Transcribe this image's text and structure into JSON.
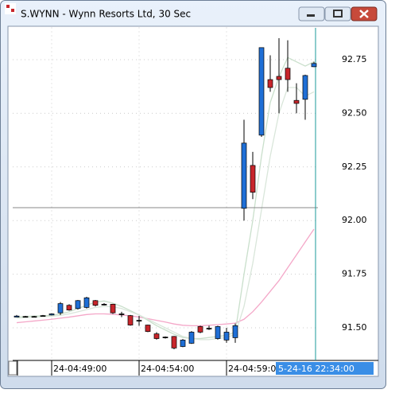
{
  "window": {
    "title": "S.WYNN - Wynn Resorts Ltd, 30 Sec"
  },
  "chart_data": {
    "type": "candlestick",
    "categories": [
      null,
      null,
      null,
      null,
      "24-04:49:00",
      null,
      null,
      null,
      null,
      null,
      null,
      null,
      null,
      null,
      "24-04:54:00",
      null,
      null,
      null,
      null,
      null,
      null,
      null,
      null,
      null,
      "24-04:59:00",
      null,
      null,
      null,
      null,
      null,
      null,
      null,
      null,
      null,
      null
    ],
    "open": [
      91.55,
      91.553,
      91.553,
      91.557,
      91.56,
      91.57,
      91.605,
      91.59,
      91.595,
      91.627,
      91.61,
      91.61,
      91.565,
      91.557,
      91.535,
      91.513,
      91.472,
      91.457,
      91.46,
      91.413,
      91.428,
      91.506,
      91.498,
      91.45,
      91.443,
      91.454,
      92.057,
      92.257,
      92.398,
      92.657,
      92.672,
      92.71,
      92.56,
      92.565,
      92.717
    ],
    "close": [
      91.555,
      91.553,
      91.553,
      91.557,
      91.565,
      91.613,
      91.583,
      91.627,
      91.64,
      91.605,
      91.61,
      91.57,
      91.565,
      91.513,
      91.535,
      91.483,
      91.45,
      91.457,
      91.406,
      91.443,
      91.48,
      91.48,
      91.498,
      91.506,
      91.48,
      91.51,
      92.361,
      92.132,
      92.806,
      92.62,
      92.657,
      92.657,
      92.546,
      92.676,
      92.732
    ],
    "high": [
      91.56,
      91.556,
      91.556,
      91.56,
      91.568,
      91.62,
      91.61,
      91.63,
      91.645,
      91.63,
      91.615,
      91.612,
      91.575,
      91.56,
      91.556,
      91.515,
      91.48,
      91.46,
      91.462,
      91.448,
      91.485,
      91.51,
      91.51,
      91.51,
      91.5,
      91.52,
      92.47,
      92.32,
      92.806,
      92.77,
      92.85,
      92.84,
      92.64,
      92.68,
      92.74
    ],
    "low": [
      91.55,
      91.55,
      91.55,
      91.554,
      91.558,
      91.56,
      91.58,
      91.585,
      91.59,
      91.6,
      91.605,
      91.565,
      91.55,
      91.51,
      91.51,
      91.48,
      91.445,
      91.45,
      91.4,
      91.41,
      91.425,
      91.475,
      91.49,
      91.445,
      91.43,
      91.43,
      92.0,
      92.1,
      92.39,
      92.6,
      92.5,
      92.6,
      92.5,
      92.47,
      92.715
    ],
    "up_color": "#1f6fd6",
    "down_color": "#c8262b",
    "series": [
      {
        "color": "#f4a7c8",
        "values": [
          91.524,
          91.528,
          91.532,
          91.536,
          91.54,
          91.545,
          91.55,
          91.556,
          91.562,
          91.565,
          91.565,
          91.563,
          91.56,
          91.556,
          91.55,
          91.543,
          91.535,
          91.527,
          91.518,
          91.512,
          91.51,
          91.51,
          91.512,
          91.515,
          91.518,
          91.522,
          91.54,
          91.575,
          91.62,
          91.67,
          91.72,
          91.78,
          91.84,
          91.9,
          91.96
        ]
      },
      {
        "color": "#c9dfcb",
        "values": [
          91.55,
          91.553,
          91.555,
          91.556,
          91.558,
          91.565,
          91.575,
          91.59,
          91.605,
          91.62,
          91.625,
          91.615,
          91.6,
          91.58,
          91.56,
          91.535,
          91.51,
          91.49,
          91.47,
          91.455,
          91.45,
          91.45,
          91.455,
          91.46,
          91.465,
          91.48,
          91.75,
          92.0,
          92.3,
          92.55,
          92.67,
          92.76,
          92.74,
          92.72,
          92.74
        ]
      },
      {
        "color": "#d9e6da",
        "values": [
          91.545,
          91.548,
          91.55,
          91.552,
          91.554,
          91.558,
          91.565,
          91.575,
          91.585,
          91.595,
          91.6,
          91.598,
          91.59,
          91.575,
          91.56,
          91.54,
          91.52,
          91.5,
          91.48,
          91.46,
          91.45,
          91.445,
          91.445,
          91.45,
          91.455,
          91.47,
          91.6,
          91.8,
          92.05,
          92.3,
          92.5,
          92.62,
          92.62,
          92.58,
          92.6
        ]
      }
    ],
    "crosshair_price": 92.06,
    "cursor_time": "5-24-16 22:34:00",
    "ylim": [
      91.35,
      92.9
    ],
    "yticks": [
      {
        "value": 91.5,
        "label": "91.50"
      },
      {
        "value": 91.75,
        "label": "91.75"
      },
      {
        "value": 92,
        "label": "92.00"
      },
      {
        "value": 92.25,
        "label": "92.25"
      },
      {
        "value": 92.5,
        "label": "92.50"
      },
      {
        "value": 92.75,
        "label": "92.75"
      }
    ],
    "grid": true
  }
}
